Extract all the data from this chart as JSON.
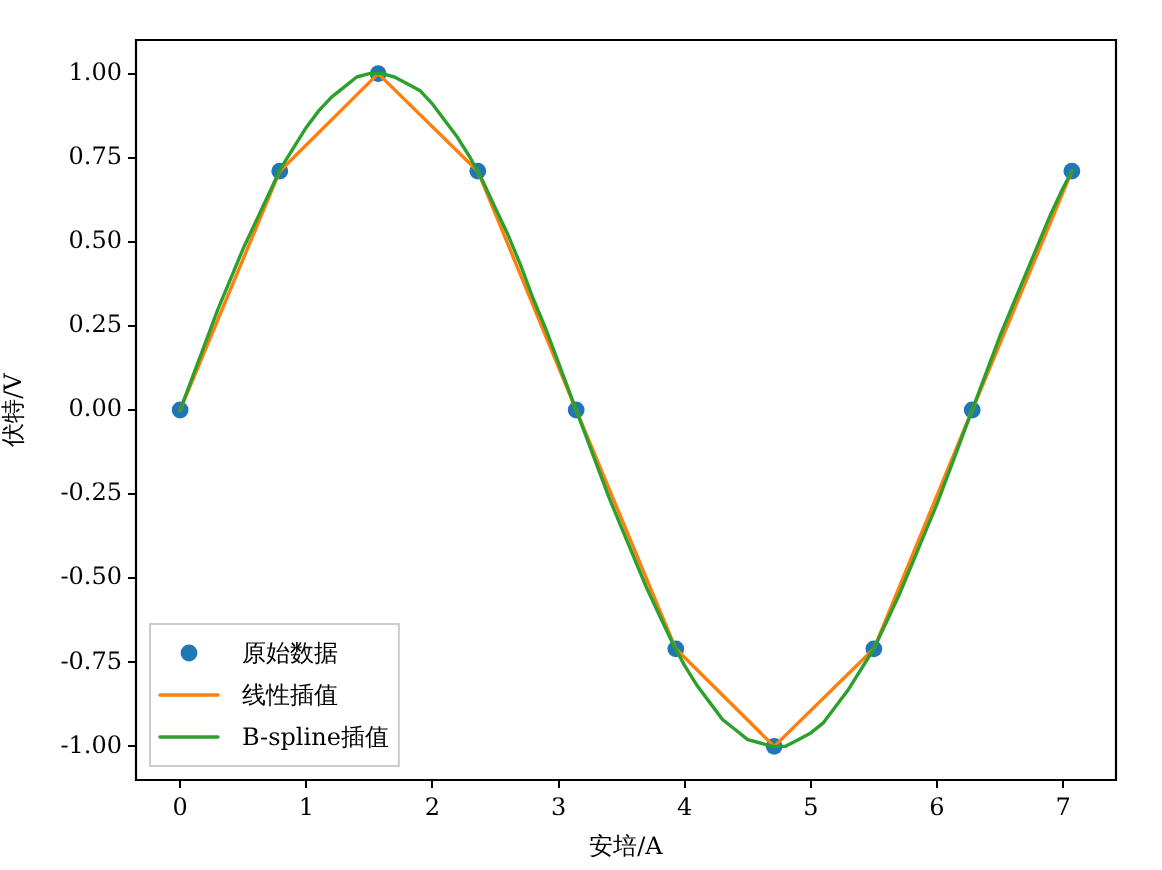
{
  "chart_data": {
    "type": "line",
    "xlabel": "安培/A",
    "ylabel": "伏特/V",
    "xlim": [
      -0.35,
      7.42
    ],
    "ylim": [
      -1.1,
      1.1
    ],
    "xticks": [
      0,
      1,
      2,
      3,
      4,
      5,
      6,
      7
    ],
    "yticks": [
      {
        "value": -1,
        "label": "-1.00"
      },
      {
        "value": -0.75,
        "label": "-0.75"
      },
      {
        "value": -0.5,
        "label": "-0.50"
      },
      {
        "value": -0.25,
        "label": "-0.25"
      },
      {
        "value": 0,
        "label": "0.00"
      },
      {
        "value": 0.25,
        "label": "0.25"
      },
      {
        "value": 0.5,
        "label": "0.50"
      },
      {
        "value": 0.75,
        "label": "0.75"
      },
      {
        "value": 1,
        "label": "1.00"
      }
    ],
    "grid": false,
    "legend": "bottom left",
    "series": [
      {
        "name": "原始数据",
        "type": "scatter",
        "marker": "circle",
        "color": "#1f77b4",
        "x": [
          0,
          0.79,
          1.57,
          2.36,
          3.14,
          3.93,
          4.71,
          5.5,
          6.28,
          7.07
        ],
        "values": [
          0,
          0.71,
          1,
          0.71,
          0,
          -0.71,
          -1,
          -0.71,
          0,
          0.71
        ]
      },
      {
        "name": "线性插值",
        "color": "#ff7f0e",
        "x": [
          0,
          0.79,
          1.57,
          2.36,
          3.14,
          3.93,
          4.71,
          5.5,
          6.28,
          7.07
        ],
        "values": [
          0,
          0.71,
          1,
          0.71,
          0,
          -0.71,
          -1,
          -0.71,
          0,
          0.71
        ]
      },
      {
        "name": "B-spline插值",
        "color": "#2ca02c",
        "x": [
          0,
          0.1,
          0.2,
          0.3,
          0.4,
          0.5,
          0.6,
          0.7,
          0.8,
          0.9,
          1.0,
          1.1,
          1.2,
          1.3,
          1.4,
          1.5,
          1.6,
          1.7,
          1.8,
          1.9,
          2.0,
          2.1,
          2.2,
          2.3,
          2.4,
          2.5,
          2.6,
          2.7,
          2.8,
          2.9,
          3.0,
          3.1,
          3.2,
          3.3,
          3.4,
          3.5,
          3.6,
          3.7,
          3.8,
          3.9,
          4.0,
          4.1,
          4.2,
          4.3,
          4.4,
          4.5,
          4.6,
          4.7,
          4.8,
          4.9,
          5.0,
          5.1,
          5.2,
          5.3,
          5.4,
          5.5,
          5.6,
          5.7,
          5.8,
          5.9,
          6.0,
          6.1,
          6.2,
          6.3,
          6.4,
          6.5,
          6.6,
          6.7,
          6.8,
          6.9,
          7.0,
          7.07
        ],
        "values": [
          0,
          0.1,
          0.2,
          0.3,
          0.39,
          0.48,
          0.56,
          0.64,
          0.72,
          0.78,
          0.84,
          0.89,
          0.93,
          0.96,
          0.99,
          1,
          1,
          0.99,
          0.97,
          0.95,
          0.91,
          0.86,
          0.81,
          0.75,
          0.68,
          0.6,
          0.52,
          0.43,
          0.33,
          0.24,
          0.14,
          0.04,
          -0.06,
          -0.16,
          -0.26,
          -0.35,
          -0.44,
          -0.53,
          -0.61,
          -0.69,
          -0.76,
          -0.82,
          -0.87,
          -0.92,
          -0.95,
          -0.98,
          -0.99,
          -1,
          -1,
          -0.98,
          -0.96,
          -0.93,
          -0.88,
          -0.83,
          -0.77,
          -0.71,
          -0.63,
          -0.55,
          -0.46,
          -0.37,
          -0.28,
          -0.18,
          -0.08,
          0.02,
          0.12,
          0.22,
          0.31,
          0.4,
          0.49,
          0.58,
          0.66,
          0.71
        ]
      }
    ]
  }
}
